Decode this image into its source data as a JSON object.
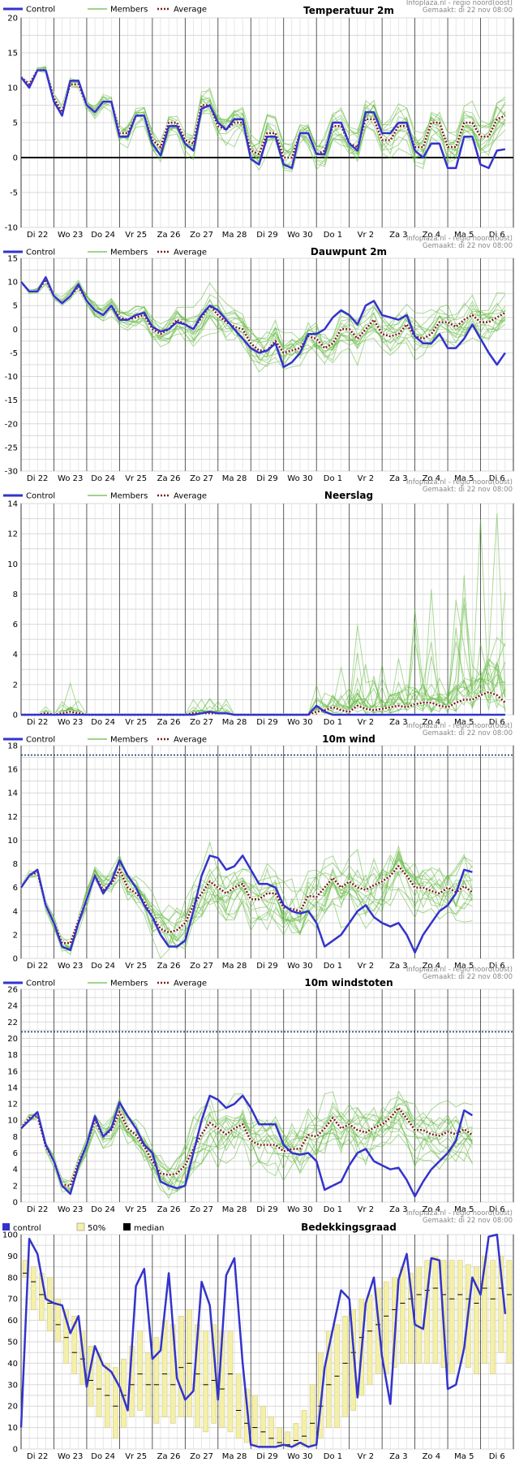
{
  "credit": {
    "source": "Infoplaza.nl - regio noord(oost)",
    "made": "Gemaakt: di 22 nov 08:00"
  },
  "legend": {
    "control": "Control",
    "members": "Members",
    "average": "Average",
    "cloud_control": "control",
    "cloud_band": "50%",
    "cloud_median": "median"
  },
  "colors": {
    "control": "#3333cc",
    "members": "#66bb44",
    "average": "#7a1f1f",
    "band": "#f5f0a8",
    "zero_line": "#000000",
    "threshold": "#1a3a6a",
    "grid": "#d8d8d8",
    "day_line": "#333333"
  },
  "x_labels": [
    "Di 22",
    "Wo 23",
    "Do 24",
    "Vr 25",
    "Za 26",
    "Zo 27",
    "Ma 28",
    "Di 29",
    "Wo 30",
    "Do 1",
    "Vr 2",
    "Za 3",
    "Zo 4",
    "Ma 5",
    "Di 6"
  ],
  "chart_data": [
    {
      "type": "line",
      "title": "Temperatuur 2m",
      "ylim": [
        -10,
        20
      ],
      "yticks": [
        -10,
        -5,
        0,
        5,
        10,
        15,
        20
      ],
      "zero_line": true,
      "x_unit": "6-hourly step from Di 22 00:00",
      "control": [
        11.5,
        10,
        12.5,
        12.5,
        8,
        6,
        11,
        11,
        7.5,
        6.5,
        8,
        8,
        3,
        3,
        6,
        6,
        2,
        0.3,
        4.5,
        4.5,
        2,
        1,
        7,
        7.5,
        5,
        4,
        5.5,
        5.5,
        -0.2,
        -1,
        3,
        3,
        -1,
        -1.5,
        3.5,
        3.5,
        0.5,
        0.5,
        5,
        5,
        2,
        1,
        6.5,
        6.5,
        3.5,
        3.5,
        5,
        5,
        1,
        0,
        2,
        2,
        -1.5,
        -1.5,
        3,
        3,
        -1,
        -1.5,
        1,
        1.2
      ],
      "average": [
        11.5,
        10.5,
        12.5,
        12.5,
        8.5,
        6.5,
        10.5,
        10.5,
        7.5,
        6.5,
        8,
        8,
        3.5,
        3.5,
        6,
        6,
        2.5,
        1.5,
        5,
        5,
        2.5,
        2,
        7.5,
        7.5,
        4.5,
        4,
        5,
        5,
        1,
        0.5,
        3.5,
        3.5,
        0,
        0,
        3.5,
        3.5,
        0.5,
        1,
        4.5,
        4.5,
        2,
        1.5,
        5.5,
        5.5,
        2.5,
        2.5,
        4.5,
        4.5,
        1.5,
        1.5,
        5,
        5,
        1.5,
        1.5,
        5,
        5,
        3,
        3,
        5.5,
        6
      ],
      "members_spread": 2.5
    },
    {
      "type": "line",
      "title": "Dauwpunt 2m",
      "ylim": [
        -30,
        15
      ],
      "yticks": [
        -30,
        -25,
        -20,
        -15,
        -10,
        -5,
        0,
        5,
        10,
        15
      ],
      "zero_line": false,
      "x_unit": "6-hourly step from Di 22 00:00",
      "control": [
        10,
        8,
        8,
        11,
        7,
        5.5,
        7,
        9.5,
        6,
        4,
        3,
        5,
        2,
        2,
        3,
        3.5,
        0.5,
        -0.5,
        0,
        1.5,
        1,
        0,
        3,
        5,
        4,
        2,
        0,
        -2,
        -4,
        -5,
        -4.5,
        -3,
        -8,
        -7,
        -5,
        -1,
        -1,
        0,
        2.5,
        4,
        3,
        1,
        5,
        6,
        3,
        2.5,
        2,
        3,
        -1.5,
        -3,
        -3,
        -1,
        -4,
        -4,
        -2,
        1,
        -2,
        -5,
        -7.5,
        -5
      ],
      "average": [
        10,
        8,
        8,
        10.5,
        7,
        5.5,
        7,
        9,
        6,
        4,
        3,
        5,
        2.5,
        2,
        2.5,
        3,
        0,
        -1,
        0,
        2,
        1,
        0,
        2.5,
        5,
        3,
        1.5,
        0.5,
        0,
        -3,
        -4.5,
        -4.5,
        -2.5,
        -5,
        -4.5,
        -4,
        -1.5,
        -2,
        -4,
        -3,
        0,
        0,
        -2,
        0,
        2,
        -1,
        -1.5,
        -1,
        1,
        -1.5,
        -2,
        -1,
        1.5,
        1.5,
        0.5,
        2,
        3,
        1.5,
        1.5,
        2.5,
        3.5
      ],
      "members_spread": 4
    },
    {
      "type": "line",
      "title": "Neerslag",
      "ylim": [
        0,
        14
      ],
      "yticks": [
        0,
        2,
        4,
        6,
        8,
        10,
        12,
        14
      ],
      "zero_line": false,
      "x_unit": "6-hourly step from Di 22 00:00",
      "control": [
        0,
        0,
        0,
        0,
        0,
        0,
        0,
        0,
        0,
        0,
        0,
        0,
        0,
        0,
        0,
        0,
        0,
        0,
        0,
        0,
        0,
        0,
        0.1,
        0.2,
        0.1,
        0.1,
        0,
        0,
        0,
        0,
        0,
        0,
        0,
        0,
        0,
        0,
        0.6,
        0.2,
        0,
        0,
        0,
        0,
        0,
        0,
        0,
        0,
        0,
        0,
        0,
        0,
        0,
        0,
        0,
        0,
        0,
        0,
        0,
        0,
        0,
        0
      ],
      "average": [
        0,
        0,
        0,
        0.1,
        0,
        0.1,
        0.2,
        0.1,
        0,
        0,
        0,
        0,
        0,
        0,
        0,
        0,
        0,
        0,
        0,
        0,
        0,
        0.1,
        0.1,
        0.1,
        0.1,
        0.1,
        0,
        0,
        0,
        0,
        0,
        0,
        0,
        0,
        0,
        0,
        0.2,
        0.3,
        0.5,
        0.3,
        0.2,
        0.6,
        0.4,
        0.3,
        0.4,
        0.5,
        0.6,
        0.5,
        0.7,
        0.8,
        0.8,
        0.6,
        0.5,
        0.8,
        1,
        1,
        1.3,
        1.5,
        1.3,
        0.8
      ],
      "members_spread": 1.5
    },
    {
      "type": "line",
      "title": "10m wind",
      "ylim": [
        0,
        18
      ],
      "yticks": [
        0,
        2,
        4,
        6,
        8,
        10,
        12,
        14,
        16,
        18
      ],
      "zero_line": false,
      "threshold": 17.2,
      "x_unit": "6-hourly step from Di 22 00:00",
      "control": [
        6,
        7,
        7.5,
        4.5,
        3,
        1,
        0.7,
        3,
        5,
        7,
        5.5,
        6.5,
        8.3,
        7,
        6,
        4.5,
        3.5,
        2,
        1,
        1,
        1.5,
        4,
        7,
        8.7,
        8.5,
        7.5,
        7.8,
        8.7,
        7.5,
        6.3,
        6.3,
        6,
        4.5,
        4,
        3.8,
        4,
        3,
        1,
        1.5,
        2,
        3,
        4,
        4.5,
        3.5,
        3,
        2.7,
        3,
        2,
        0.5,
        2,
        3,
        4,
        4.5,
        5.5,
        7.5,
        7.3
      ],
      "average": [
        6,
        7,
        7.3,
        4.5,
        3,
        1.3,
        1.3,
        3.2,
        5,
        7,
        5.8,
        6.3,
        7.5,
        6,
        5.5,
        4.8,
        3.5,
        2.5,
        2.2,
        2.4,
        3,
        4.5,
        5.5,
        6.5,
        6,
        5.5,
        6,
        6.3,
        5,
        5,
        5.5,
        5.5,
        4.3,
        4.2,
        4,
        5.3,
        5.2,
        6,
        6.8,
        6,
        6.5,
        6,
        5.8,
        6.2,
        6.5,
        7,
        7.8,
        7,
        6,
        6,
        5.7,
        5.5,
        6,
        5.6,
        6.1,
        5.6
      ],
      "members_spread": 2.5
    },
    {
      "type": "line",
      "title": "10m windstoten",
      "ylim": [
        0,
        26
      ],
      "yticks": [
        0,
        2,
        4,
        6,
        8,
        10,
        12,
        14,
        16,
        18,
        20,
        22,
        24,
        26
      ],
      "zero_line": false,
      "threshold": 20.8,
      "x_unit": "6-hourly step from Di 22 00:00",
      "control": [
        9,
        10,
        11,
        7,
        5,
        2,
        1,
        4.5,
        7,
        10.5,
        8,
        9,
        12.2,
        10.5,
        9,
        7,
        6,
        2.5,
        2,
        1.7,
        2,
        6,
        10,
        13,
        12.5,
        11.5,
        12,
        13,
        11.5,
        9.5,
        9.5,
        9.5,
        7,
        6,
        5.8,
        6,
        5,
        1.5,
        2,
        2.5,
        4.5,
        6,
        6.5,
        5,
        4.5,
        4,
        4.2,
        2.7,
        0.7,
        2.5,
        4,
        5,
        6,
        7.5,
        11.2,
        10.6
      ],
      "average": [
        9,
        10.3,
        10.5,
        6.8,
        5,
        2.1,
        2,
        4.8,
        7,
        10,
        8,
        8.8,
        11,
        9,
        8.2,
        6.8,
        5,
        3.5,
        3.3,
        3.5,
        4.5,
        6.5,
        8.3,
        9.7,
        9,
        8.3,
        9,
        9.5,
        7.5,
        7,
        7,
        7,
        6.2,
        6.5,
        6.5,
        8.2,
        8,
        9,
        10.3,
        9,
        9.5,
        8.8,
        8.5,
        9.1,
        9.5,
        10.3,
        11.5,
        10.2,
        8.8,
        8.8,
        8.3,
        8.1,
        8.6,
        8.3,
        8.9,
        8.2
      ],
      "members_spread": 3.5
    },
    {
      "type": "line",
      "title": "Bedekkingsgraad",
      "ylim": [
        0,
        100
      ],
      "yticks": [
        0,
        10,
        20,
        30,
        40,
        50,
        60,
        70,
        80,
        90,
        100
      ],
      "zero_line": false,
      "x_unit": "6-hourly step from Di 22 00:00",
      "control": [
        10,
        98,
        91,
        70,
        68,
        67,
        54,
        62,
        29,
        48,
        39,
        36,
        29,
        18,
        76,
        84,
        42,
        46,
        82,
        33,
        23,
        27,
        78,
        67,
        23,
        81,
        89,
        40,
        2,
        1,
        1,
        1,
        2,
        1,
        3,
        1,
        2,
        38,
        56,
        74,
        70,
        24,
        68,
        80,
        43,
        21,
        79,
        91,
        58,
        56,
        89,
        88,
        28,
        30,
        47,
        80,
        72,
        99,
        100,
        63
      ],
      "boxes": [
        [
          80,
          88,
          82
        ],
        [
          65,
          85,
          78
        ],
        [
          60,
          82,
          72
        ],
        [
          55,
          80,
          68
        ],
        [
          50,
          70,
          58
        ],
        [
          40,
          65,
          52
        ],
        [
          35,
          62,
          45
        ],
        [
          30,
          55,
          42
        ],
        [
          20,
          48,
          32
        ],
        [
          15,
          45,
          28
        ],
        [
          10,
          40,
          25
        ],
        [
          5,
          38,
          20
        ],
        [
          10,
          42,
          25
        ],
        [
          15,
          48,
          30
        ],
        [
          18,
          55,
          35
        ],
        [
          15,
          45,
          30
        ],
        [
          12,
          52,
          30
        ],
        [
          15,
          60,
          35
        ],
        [
          12,
          58,
          30
        ],
        [
          15,
          62,
          38
        ],
        [
          15,
          65,
          40
        ],
        [
          10,
          58,
          35
        ],
        [
          8,
          55,
          30
        ],
        [
          12,
          58,
          32
        ],
        [
          10,
          55,
          28
        ],
        [
          8,
          55,
          35
        ],
        [
          5,
          35,
          18
        ],
        [
          3,
          28,
          12
        ],
        [
          2,
          25,
          10
        ],
        [
          1,
          20,
          8
        ],
        [
          1,
          15,
          5
        ],
        [
          1,
          10,
          3
        ],
        [
          1,
          8,
          2
        ],
        [
          1,
          12,
          4
        ],
        [
          1,
          18,
          6
        ],
        [
          2,
          30,
          12
        ],
        [
          5,
          45,
          20
        ],
        [
          10,
          55,
          30
        ],
        [
          10,
          58,
          34
        ],
        [
          15,
          62,
          40
        ],
        [
          18,
          65,
          45
        ],
        [
          25,
          70,
          52
        ],
        [
          30,
          72,
          55
        ],
        [
          35,
          75,
          58
        ],
        [
          35,
          78,
          62
        ],
        [
          38,
          80,
          65
        ],
        [
          40,
          85,
          68
        ],
        [
          40,
          82,
          70
        ],
        [
          40,
          85,
          72
        ],
        [
          40,
          88,
          74
        ],
        [
          40,
          90,
          75
        ],
        [
          38,
          88,
          72
        ],
        [
          35,
          88,
          70
        ],
        [
          40,
          88,
          72
        ],
        [
          38,
          86,
          70
        ],
        [
          35,
          85,
          68
        ],
        [
          40,
          90,
          75
        ],
        [
          35,
          88,
          70
        ],
        [
          45,
          90,
          75
        ],
        [
          40,
          88,
          72
        ]
      ]
    }
  ]
}
